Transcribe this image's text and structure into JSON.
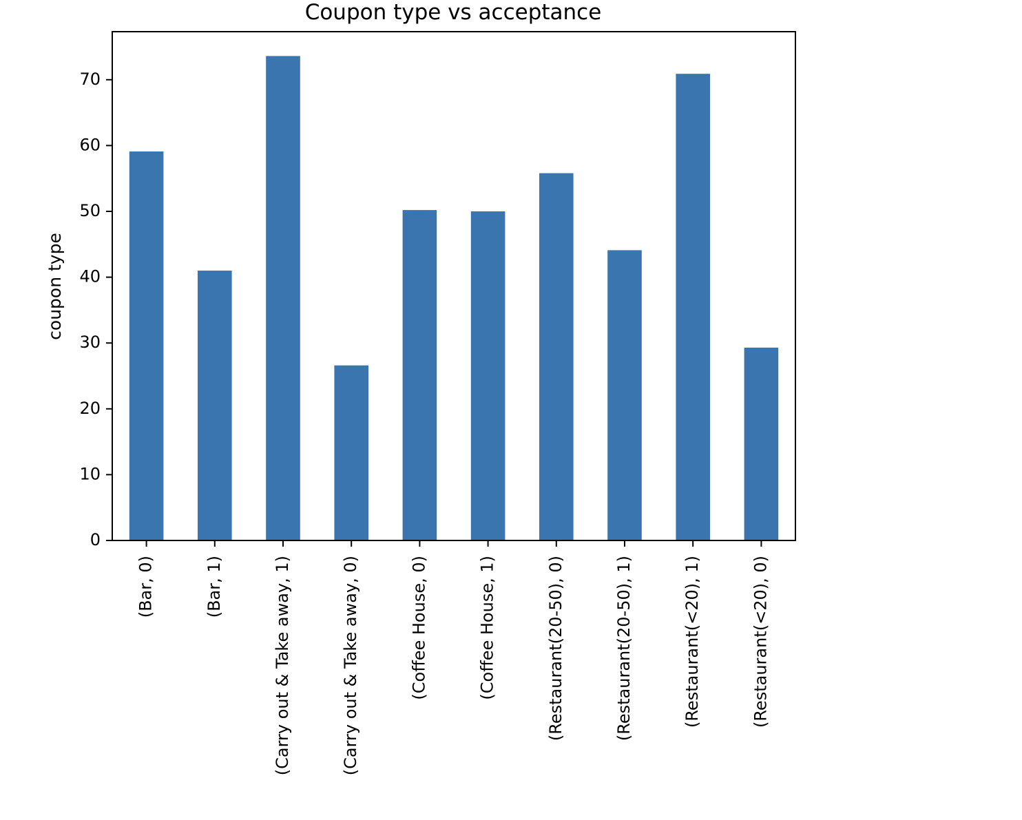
{
  "chart_data": {
    "type": "bar",
    "title": "Coupon type vs acceptance",
    "xlabel": "",
    "ylabel": "coupon type",
    "categories": [
      "(Bar, 0)",
      "(Bar, 1)",
      "(Carry out & Take away, 1)",
      "(Carry out & Take away, 0)",
      "(Coffee House, 0)",
      "(Coffee House, 1)",
      "(Restaurant(20-50), 0)",
      "(Restaurant(20-50), 1)",
      "(Restaurant(<20), 1)",
      "(Restaurant(<20), 0)"
    ],
    "values": [
      59.1,
      41.0,
      73.6,
      26.6,
      50.2,
      50.0,
      55.8,
      44.1,
      70.9,
      29.3
    ],
    "ylim": [
      0,
      77.3
    ],
    "yticks": [
      0,
      10,
      20,
      30,
      40,
      50,
      60,
      70
    ],
    "bar_color": "#3b75af",
    "grid": false,
    "legend": false
  }
}
